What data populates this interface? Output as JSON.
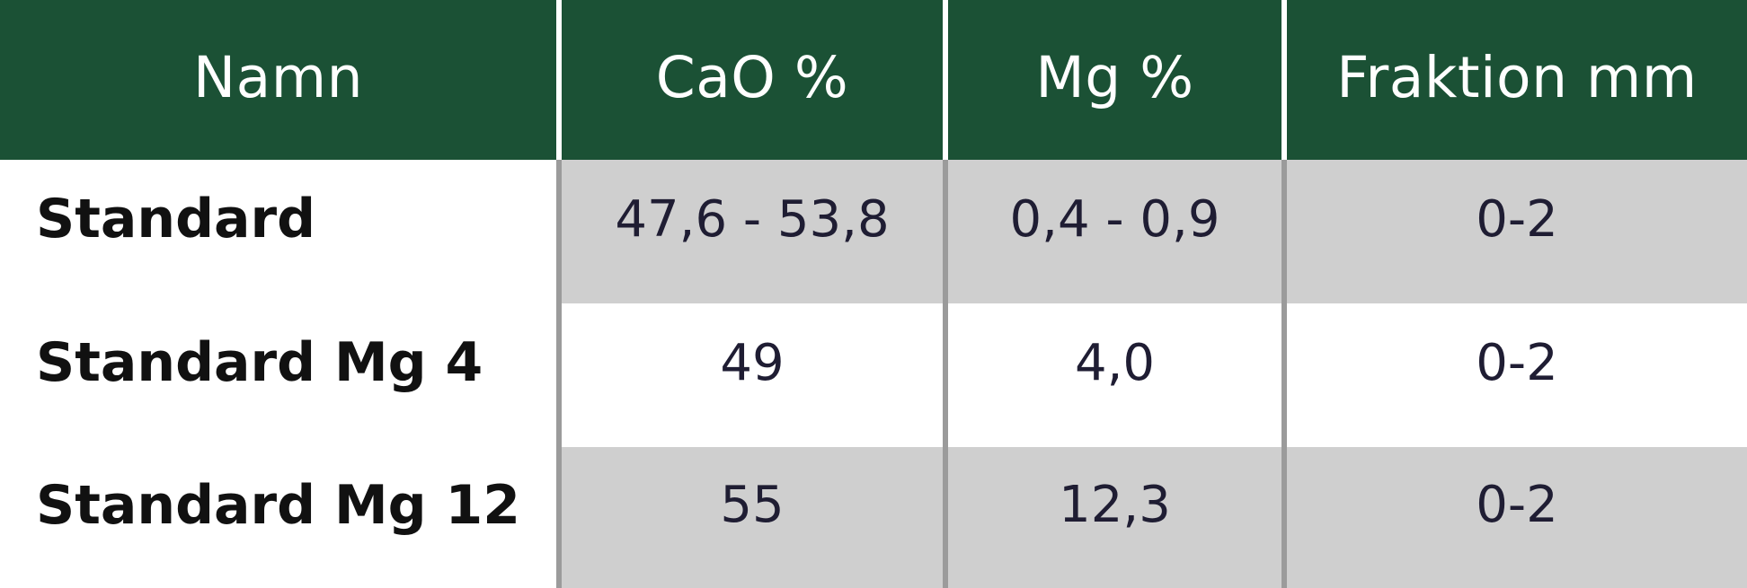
{
  "table": {
    "headers": [
      "Namn",
      "CaO %",
      "Mg %",
      "Fraktion mm"
    ],
    "rows": [
      {
        "name": "Standard",
        "cao": "47,6 - 53,8",
        "mg": "0,4 - 0,9",
        "fraktion": "0-2"
      },
      {
        "name": "Standard Mg 4",
        "cao": "49",
        "mg": "4,0",
        "fraktion": "0-2"
      },
      {
        "name": "Standard Mg 12",
        "cao": "55",
        "mg": "12,3",
        "fraktion": "0-2"
      }
    ]
  },
  "colors": {
    "header_bg": "#1b5135",
    "header_text": "#ffffff",
    "shaded_row": "#cfcfcf",
    "divider": "#9b9b9b"
  }
}
